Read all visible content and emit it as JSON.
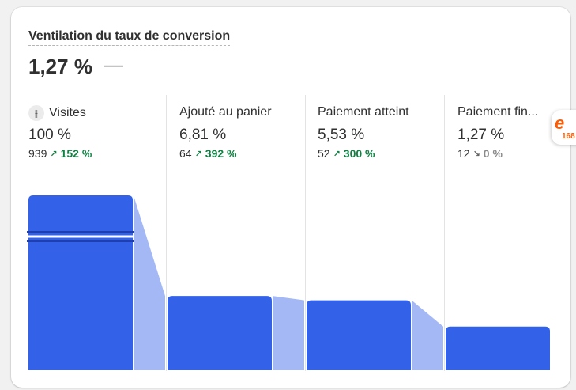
{
  "card": {
    "title": "Ventilation du taux de conversion",
    "headline_value": "1,27 %",
    "headline_change": "—"
  },
  "steps": [
    {
      "label": "Visites",
      "pct": "100 %",
      "count": "939",
      "trend": "152 %",
      "trend_dir": "up",
      "bar_fraction": 1.0
    },
    {
      "label": "Ajouté au panier",
      "pct": "6,81 %",
      "count": "64",
      "trend": "392 %",
      "trend_dir": "up",
      "bar_fraction": 0.425
    },
    {
      "label": "Paiement atteint",
      "pct": "5,53 %",
      "count": "52",
      "trend": "300 %",
      "trend_dir": "up",
      "bar_fraction": 0.4
    },
    {
      "label": "Paiement fin...",
      "pct": "1,27 %",
      "count": "12",
      "trend": "0 %",
      "trend_dir": "flat",
      "bar_fraction": 0.25
    }
  ],
  "icons": {
    "visits": "visits-icon",
    "trend_up": "arrow-up-right-icon",
    "trend_flat": "arrow-down-right-icon"
  },
  "colors": {
    "bar": "#3362e8",
    "connector": "#a3b8f5",
    "trend_up": "#108043",
    "trend_flat": "#8a8a8a"
  },
  "extension": {
    "badge_text": "168"
  }
}
